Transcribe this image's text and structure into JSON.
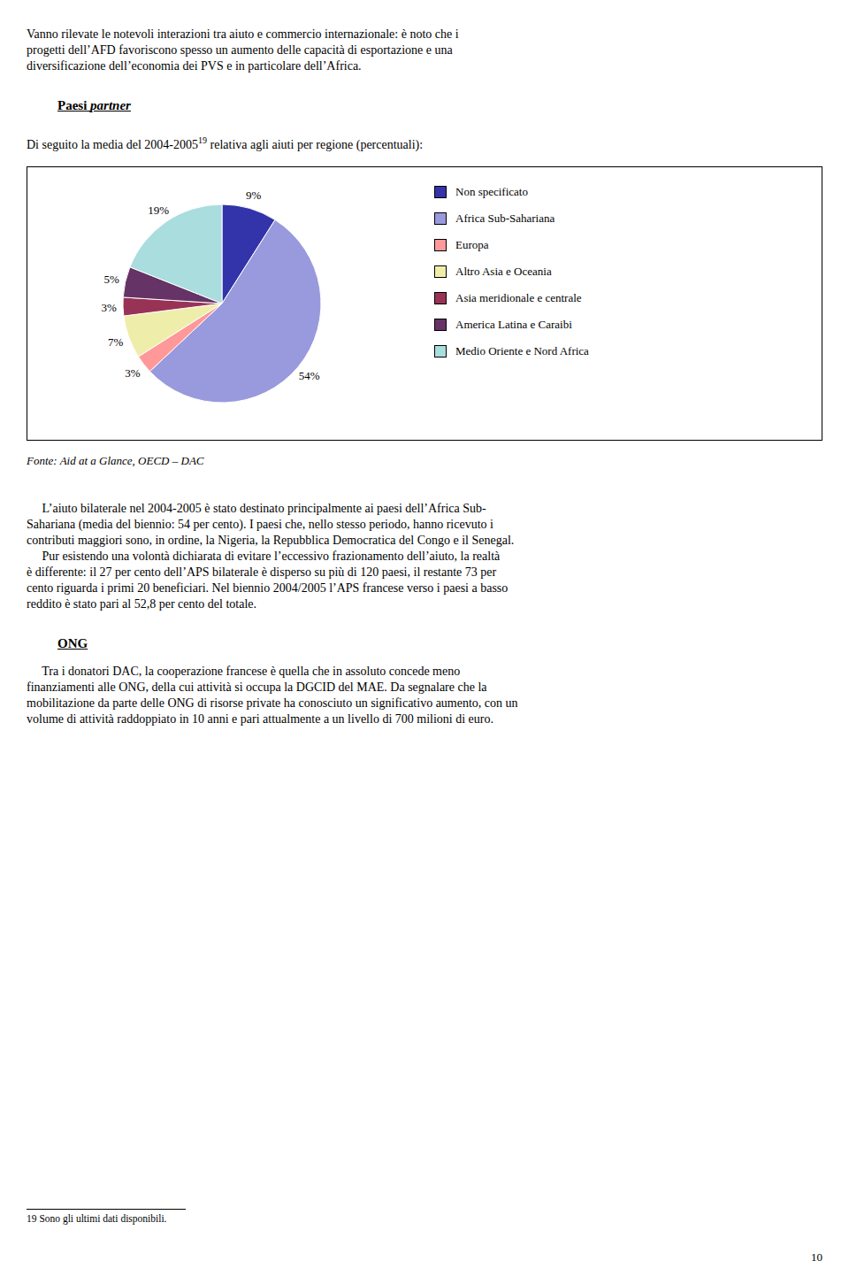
{
  "chart_data": {
    "type": "pie",
    "title": [
      {
        "text": "Di seguito la media del 2004-2005"
      },
      {
        "text": "19",
        "superscript": true
      },
      {
        "text": " relativa agli aiuti per regione (percentuali):"
      }
    ],
    "categories": [
      "Non specificato",
      "Africa Sub-Sahariana",
      "Europa",
      "Altro Asia e Oceania",
      "Asia meridionale e centrale",
      "America Latina e Caraibi",
      "Medio Oriente e Nord Africa"
    ],
    "values": [
      9,
      54,
      3,
      7,
      3,
      5,
      19
    ],
    "value_labels": [
      "9%",
      "54%",
      "3%",
      "7%",
      "3%",
      "5%",
      "19%"
    ],
    "colors": [
      "#3333AA",
      "#9999DD",
      "#FF9999",
      "#EEEEAA",
      "#993355",
      "#663366",
      "#AADDDD"
    ],
    "data_labels": true,
    "legend": "right",
    "annotations": [
      {
        "kind": "paragraph",
        "lines": [
          "Vanno rilevate le notevoli interazioni tra aiuto e commercio internazionale: è noto che i",
          "progetti dell’AFD favoriscono spesso un aumento delle capacità di esportazione e una",
          "diversificazione dell’economia dei PVS e in particolare dell’Africa."
        ]
      },
      {
        "kind": "heading",
        "parts": [
          {
            "text": "Paesi "
          },
          {
            "text": "partner",
            "italic": true
          }
        ]
      },
      {
        "kind": "chart"
      },
      {
        "kind": "source",
        "lines": [
          "Fonte: Aid at a Glance, OECD – DAC"
        ]
      },
      {
        "kind": "paragraph",
        "lines": [
          "     L’aiuto bilaterale nel 2004-2005 è stato destinato principalmente ai paesi dell’Africa Sub-",
          "Sahariana (media del biennio: 54 per cento). I paesi che, nello stesso periodo, hanno ricevuto i",
          "contributi maggiori sono, in ordine, la Nigeria, la Repubblica Democratica del Congo e il Senegal.",
          "     Pur esistendo una volontà dichiarata di evitare l’eccessivo frazionamento dell’aiuto, la realtà",
          "è differente: il 27 per cento dell’APS bilaterale è disperso su più di 120 paesi, il restante 73 per",
          "cento riguarda i primi 20 beneficiari. Nel biennio 2004/2005 l’APS francese verso i paesi a basso",
          "reddito è stato pari al 52,8 per cento del totale."
        ]
      },
      {
        "kind": "heading",
        "parts": [
          {
            "text": "ONG"
          }
        ]
      },
      {
        "kind": "paragraph",
        "lines": [
          "     Tra i donatori DAC, la cooperazione francese è quella che in assoluto concede meno",
          "finanziamenti alle ONG, della cui attività si occupa la DGCID del MAE. Da segnalare che la",
          "mobilitazione da parte delle ONG di risorse private ha conosciuto un significativo aumento, con un",
          "volume di attività raddoppiato in 10 anni e pari attualmente a un livello di 700 milioni di euro."
        ]
      },
      {
        "kind": "footnote",
        "lines": [
          "19 Sono gli ultimi dati disponibili."
        ]
      },
      {
        "kind": "page_number",
        "lines": [
          "10"
        ]
      }
    ]
  }
}
